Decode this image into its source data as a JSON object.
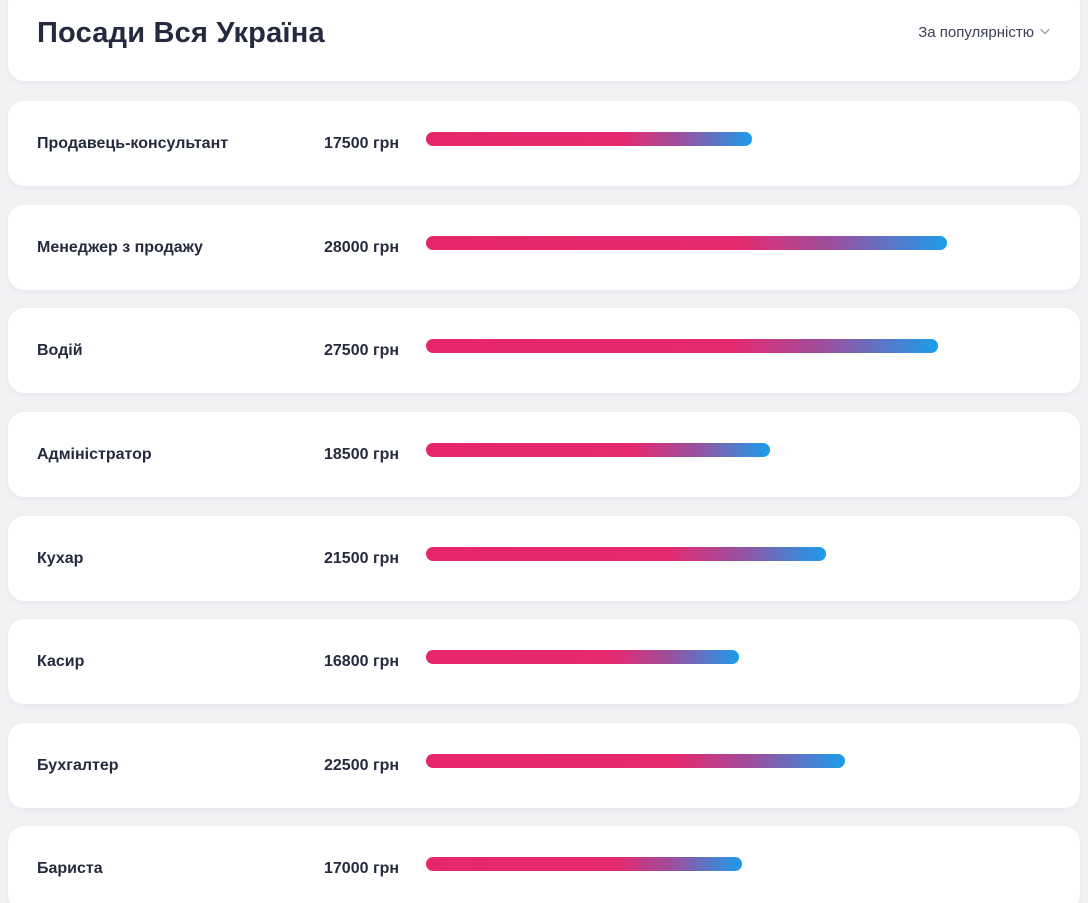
{
  "header": {
    "title": "Посади Вся Україна",
    "sort_label": "За популярністю"
  },
  "jobs": [
    {
      "title": "Продавець-консультант",
      "salary": "17500 грн",
      "salary_value": 17500
    },
    {
      "title": "Менеджер з продажу",
      "salary": "28000 грн",
      "salary_value": 28000
    },
    {
      "title": "Водій",
      "salary": "27500 грн",
      "salary_value": 27500
    },
    {
      "title": "Адміністратор",
      "salary": "18500 грн",
      "salary_value": 18500
    },
    {
      "title": "Кухар",
      "salary": "21500 грн",
      "salary_value": 21500
    },
    {
      "title": "Касир",
      "salary": "16800 грн",
      "salary_value": 16800
    },
    {
      "title": "Бухгалтер",
      "salary": "22500 грн",
      "salary_value": 22500
    },
    {
      "title": "Бариста",
      "salary": "17000 грн",
      "salary_value": 17000
    }
  ],
  "colors": {
    "bar_start": "#e8266b",
    "bar_end": "#1b9cec",
    "text": "#252a3f",
    "background": "#f1f2f4"
  }
}
